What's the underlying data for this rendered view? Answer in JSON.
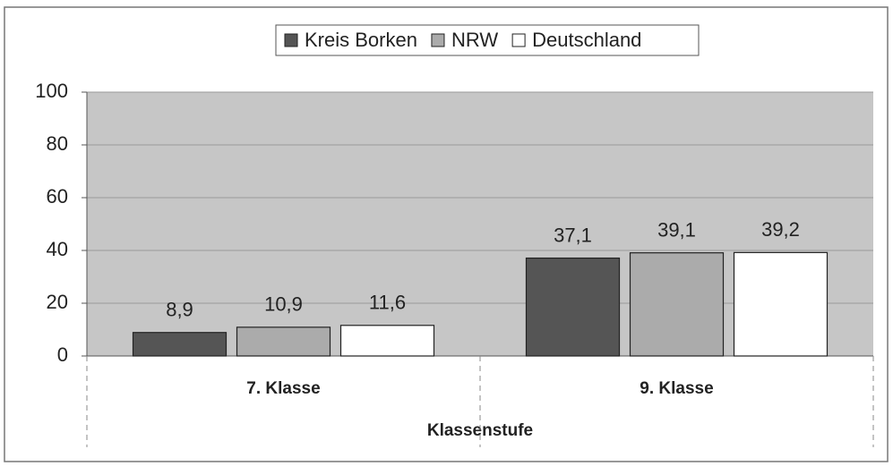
{
  "chart_data": {
    "type": "bar",
    "categories": [
      "7. Klasse",
      "9. Klasse"
    ],
    "series": [
      {
        "name": "Kreis Borken",
        "color": "#555555",
        "values": [
          8.9,
          37.1
        ],
        "value_labels": [
          "8,9",
          "37,1"
        ]
      },
      {
        "name": "NRW",
        "color": "#ababab",
        "values": [
          10.9,
          39.1
        ],
        "value_labels": [
          "10,9",
          "39,1"
        ]
      },
      {
        "name": "Deutschland",
        "color": "#ffffff",
        "values": [
          11.6,
          39.2
        ],
        "value_labels": [
          "11,6",
          "39,2"
        ]
      }
    ],
    "x_label": "Klassenstufe",
    "ylim": [
      0,
      100
    ],
    "yticks": [
      0,
      20,
      40,
      60,
      80,
      100
    ],
    "grid": true,
    "legend": "top"
  }
}
